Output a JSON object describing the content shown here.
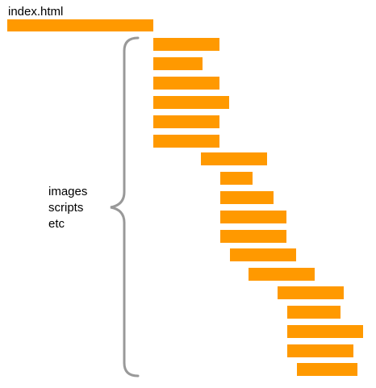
{
  "diagram": {
    "main_label": "index.html",
    "group_note": [
      "images",
      "scripts",
      "etc"
    ],
    "colors": {
      "bar": "#ff9900",
      "brace": "#999999",
      "text": "#000000",
      "background": "#ffffff"
    }
  }
}
